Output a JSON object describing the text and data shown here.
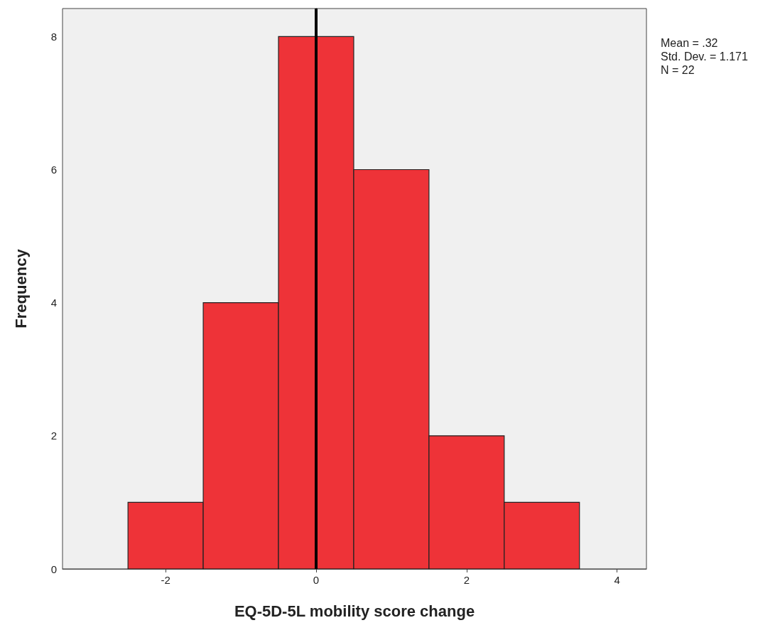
{
  "chart_data": {
    "type": "histogram",
    "xlabel": "EQ-5D-5L mobility score change",
    "ylabel": "Frequency",
    "bins": [
      -2.5,
      -1.5,
      -0.5,
      0.5,
      1.5,
      2.5,
      3.5
    ],
    "values": [
      1,
      4,
      8,
      6,
      2,
      1
    ],
    "color": "#ee3338",
    "xlim": [
      -3.37,
      4.39
    ],
    "xticks": [
      -2,
      0,
      2,
      4
    ],
    "ylim": [
      0,
      8.42
    ],
    "yticks": [
      0,
      2,
      4,
      6,
      8
    ],
    "grid": false,
    "ref_lines": [
      {
        "axis": "x",
        "value": 0,
        "label": null,
        "color": "#000000"
      }
    ],
    "annotations": [
      "Mean = .32",
      "Std. Dev. = 1.171",
      "N = 22"
    ]
  }
}
